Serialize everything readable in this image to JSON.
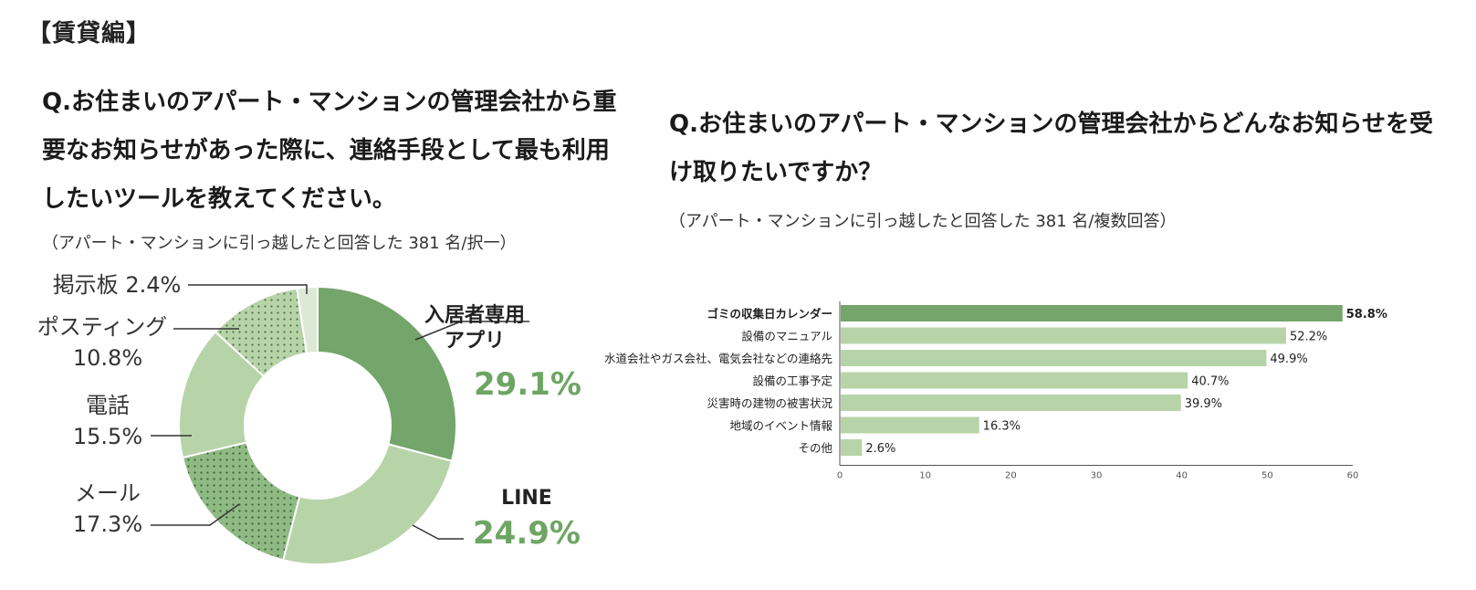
{
  "section_title": "【賃貸編】",
  "left": {
    "question": "Q.お住まいのアパート・マンションの管理会社から重要なお知らせがあった際に、連絡手段として最も利用したいツールを教えてください。",
    "note": "（アパート・マンションに引っ越したと回答した 381 名/択一）"
  },
  "right": {
    "question": "Q.お住まいのアパート・マンションの管理会社からどんなお知らせを受け取りたいですか？",
    "note": "（アパート・マンションに引っ越したと回答した 381 名/複数回答）"
  },
  "chart_data": [
    {
      "type": "pie",
      "variant": "donut",
      "slices": [
        {
          "name": "入居者専用アプリ",
          "label_lines": [
            "入居者専用",
            "アプリ"
          ],
          "value": 29.1,
          "display": "29.1%",
          "pattern": "solid",
          "color": "#74a56b"
        },
        {
          "name": "LINE",
          "label_lines": [
            "LINE"
          ],
          "value": 24.9,
          "display": "24.9%",
          "pattern": "solid",
          "color": "#b7d4a8"
        },
        {
          "name": "メール",
          "label_lines": [
            "メール"
          ],
          "value": 17.3,
          "display": "17.3%",
          "pattern": "dots",
          "color": "#8fba84"
        },
        {
          "name": "電話",
          "label_lines": [
            "電話"
          ],
          "value": 15.5,
          "display": "15.5%",
          "pattern": "solid",
          "color": "#b7d4a8"
        },
        {
          "name": "ポスティング",
          "label_lines": [
            "ポスティング"
          ],
          "value": 10.8,
          "display": "10.8%",
          "pattern": "dots",
          "color": "#b7d4a8"
        },
        {
          "name": "掲示板",
          "label_lines": [
            "掲示板"
          ],
          "value": 2.4,
          "display": "2.4%",
          "pattern": "solid",
          "color": "#dde9d5"
        }
      ]
    },
    {
      "type": "bar",
      "orientation": "horizontal",
      "categories": [
        "ゴミの収集日カレンダー",
        "設備のマニュアル",
        "水道会社やガス会社、電気会社などの連絡先",
        "設備の工事予定",
        "災害時の建物の被害状況",
        "地域のイベント情報",
        "その他"
      ],
      "values": [
        58.8,
        52.2,
        49.9,
        40.7,
        39.9,
        16.3,
        2.6
      ],
      "value_labels": [
        "58.8%",
        "52.2%",
        "49.9%",
        "40.7%",
        "39.9%",
        "16.3%",
        "2.6%"
      ],
      "highlight_index": 0,
      "xlim": [
        0,
        60
      ],
      "xticks": [
        0,
        10,
        20,
        30,
        40,
        50,
        60
      ],
      "colors": {
        "highlight": "#74a56b",
        "normal": "#b7d4a8"
      }
    }
  ]
}
